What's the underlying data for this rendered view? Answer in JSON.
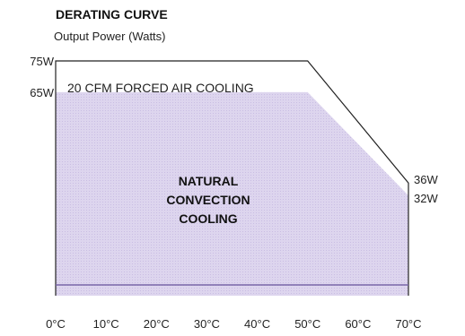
{
  "chart_data": {
    "type": "area",
    "title": "DERATING CURVE",
    "ylabel": "Output Power (Watts)",
    "xlabel": "",
    "x_ticks": [
      "0°C",
      "10°C",
      "20°C",
      "30°C",
      "40°C",
      "50°C",
      "60°C",
      "70°C"
    ],
    "y_labels": [
      {
        "value": 75,
        "label": "75W"
      },
      {
        "value": 65,
        "label": "65W"
      }
    ],
    "xlim": [
      0,
      70
    ],
    "ylim": [
      0,
      75
    ],
    "series": [
      {
        "name": "20 CFM FORCED AIR COOLING",
        "x": [
          0,
          50,
          70
        ],
        "y": [
          75,
          75,
          36
        ],
        "end_label": "36W",
        "style": "outline"
      },
      {
        "name": "NATURAL CONVECTION COOLING",
        "name_lines": [
          "NATURAL",
          "CONVECTION",
          "COOLING"
        ],
        "x": [
          0,
          50,
          70
        ],
        "y": [
          65,
          65,
          32
        ],
        "end_label": "32W",
        "style": "filled",
        "color": "#dcd3ee"
      }
    ],
    "baseline_color": "#7a67a8",
    "grid": false
  }
}
